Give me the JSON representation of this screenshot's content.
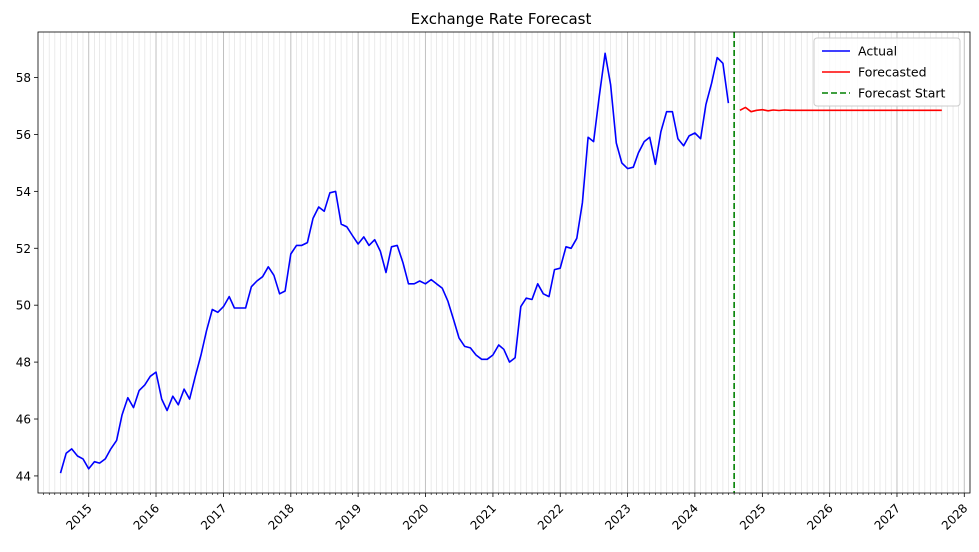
{
  "chart_data": {
    "type": "line",
    "title": "Exchange Rate Forecast",
    "xlabel": "",
    "ylabel": "",
    "x_axis": "date",
    "xlim": [
      "2014-04-01",
      "2028-02-01"
    ],
    "ylim": [
      43.4,
      59.6
    ],
    "y_ticks": [
      44,
      46,
      48,
      50,
      52,
      54,
      56,
      58
    ],
    "x_ticks": [
      "2015-01-01",
      "2016-01-01",
      "2017-01-01",
      "2018-01-01",
      "2019-01-01",
      "2020-01-01",
      "2021-01-01",
      "2022-01-01",
      "2023-01-01",
      "2024-01-01",
      "2025-01-01",
      "2026-01-01",
      "2027-01-01",
      "2028-01-01"
    ],
    "x_tick_labels": [
      "2015",
      "2016",
      "2017",
      "2018",
      "2019",
      "2020",
      "2021",
      "2022",
      "2023",
      "2024",
      "2025",
      "2026",
      "2027",
      "2028"
    ],
    "minor_ticks": "monthly",
    "grid": "vertical, monthly",
    "legend_position": "top-right",
    "series": [
      {
        "name": "Actual",
        "color": "#0000ff",
        "start": "2014-08-01",
        "frequency": "monthly",
        "values": [
          44.1,
          44.8,
          44.95,
          44.7,
          44.6,
          44.25,
          44.5,
          44.45,
          44.6,
          44.95,
          45.25,
          46.15,
          46.75,
          46.4,
          47.0,
          47.2,
          47.5,
          47.65,
          46.7,
          46.3,
          46.8,
          46.5,
          47.05,
          46.7,
          47.5,
          48.25,
          49.1,
          49.85,
          49.75,
          49.95,
          50.3,
          49.9,
          49.9,
          49.9,
          50.65,
          50.85,
          51.0,
          51.35,
          51.05,
          50.4,
          50.5,
          51.8,
          52.1,
          52.1,
          52.2,
          53.05,
          53.45,
          53.3,
          53.95,
          54.0,
          52.85,
          52.75,
          52.45,
          52.15,
          52.4,
          52.1,
          52.3,
          51.9,
          51.15,
          52.05,
          52.1,
          51.5,
          50.75,
          50.75,
          50.85,
          50.75,
          50.9,
          50.75,
          50.6,
          50.15,
          49.5,
          48.85,
          48.55,
          48.5,
          48.25,
          48.1,
          48.1,
          48.25,
          48.6,
          48.45,
          48.0,
          48.15,
          49.95,
          50.25,
          50.2,
          50.75,
          50.4,
          50.3,
          51.25,
          51.3,
          52.05,
          52.0,
          52.35,
          53.6,
          55.9,
          55.75,
          57.35,
          58.85,
          57.75,
          55.7,
          55.0,
          54.8,
          54.85,
          55.35,
          55.75,
          55.9,
          54.95,
          56.1,
          56.8,
          56.8,
          55.85,
          55.6,
          55.95,
          56.05,
          55.85,
          57.05,
          57.8,
          58.7,
          58.5,
          57.1
        ]
      },
      {
        "name": "Forecasted",
        "color": "#ff0000",
        "start": "2024-09-01",
        "frequency": "monthly",
        "values": [
          56.85,
          56.95,
          56.8,
          56.85,
          56.87,
          56.83,
          56.86,
          56.84,
          56.86,
          56.85,
          56.85,
          56.85,
          56.85,
          56.85,
          56.85,
          56.85,
          56.85,
          56.85,
          56.85,
          56.85,
          56.85,
          56.85,
          56.85,
          56.85,
          56.85,
          56.85,
          56.85,
          56.85,
          56.85,
          56.85,
          56.85,
          56.85,
          56.85,
          56.85,
          56.85,
          56.85,
          56.85
        ]
      }
    ],
    "markers": [
      {
        "name": "Forecast Start",
        "date": "2024-08-01",
        "color": "#008000",
        "style": "dashed vertical line"
      }
    ]
  }
}
